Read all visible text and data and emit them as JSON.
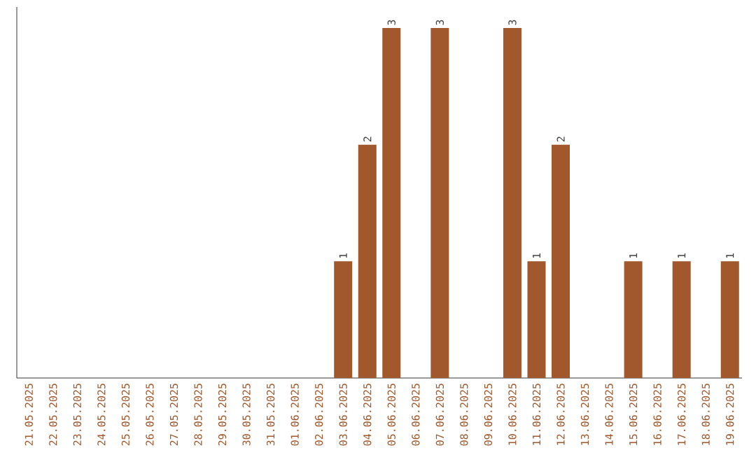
{
  "chart_data": {
    "type": "bar",
    "color": "#a0582c",
    "tick_labels": "x",
    "categories": [
      "21.05.2025",
      "22.05.2025",
      "23.05.2025",
      "24.05.2025",
      "25.05.2025",
      "26.05.2025",
      "27.05.2025",
      "28.05.2025",
      "29.05.2025",
      "30.05.2025",
      "31.05.2025",
      "01.06.2025",
      "02.06.2025",
      "03.06.2025",
      "04.06.2025",
      "05.06.2025",
      "06.06.2025",
      "07.06.2025",
      "08.06.2025",
      "09.06.2025",
      "10.06.2025",
      "11.06.2025",
      "12.06.2025",
      "13.06.2025",
      "14.06.2025",
      "15.06.2025",
      "16.06.2025",
      "17.06.2025",
      "18.06.2025",
      "19.06.2025"
    ],
    "values": [
      null,
      null,
      null,
      null,
      null,
      null,
      null,
      null,
      null,
      null,
      null,
      null,
      null,
      1,
      2,
      3,
      null,
      3,
      null,
      null,
      3,
      1,
      2,
      null,
      null,
      1,
      null,
      1,
      null,
      1
    ],
    "value_labels": [
      null,
      null,
      null,
      null,
      null,
      null,
      null,
      null,
      null,
      null,
      null,
      null,
      null,
      "1",
      "2",
      "3",
      null,
      "3",
      null,
      null,
      "3",
      "1",
      "2",
      null,
      null,
      "1",
      null,
      "1",
      null,
      "1"
    ]
  }
}
